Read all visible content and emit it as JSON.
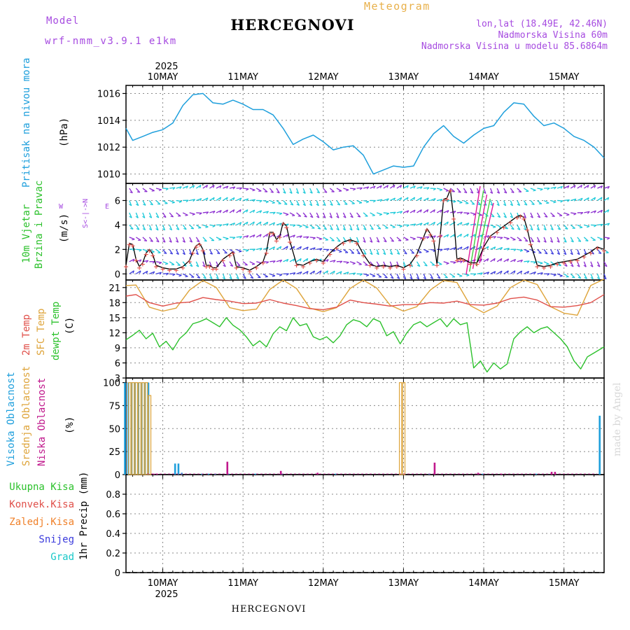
{
  "header": {
    "model_label": "Model",
    "model_name": "wrf-nmm_v3.9.1 e1km",
    "meteogram": "Meteogram",
    "location": "HERCEGNOVI",
    "lonlat": "lon,lat (18.49E, 42.46N)",
    "altitude": "Nadmorska Visina 60m",
    "model_altitude": "Nadmorska Visina u modelu 85.6864m",
    "footer_location": "HERCEGNOVI",
    "watermark": "made by Angel",
    "year": "2025"
  },
  "colors": {
    "pressure": "#1e9fdc",
    "temp2m": "#e0504a",
    "sfc": "#dea43a",
    "dewpt": "#2cc12c",
    "high_cloud": "#1e9fdc",
    "mid_cloud": "#dea43a",
    "low_cloud": "#c0188c",
    "wind_purple": "#8a2bd0",
    "wind_cyan": "#18c8d8",
    "wind_blue": "#3a3adc",
    "wind_green": "#40d040",
    "wind_pink": "#e0189a",
    "ukupna": "#2cc12c",
    "konvek": "#e0504a",
    "zaledj": "#f0812a",
    "snijeg": "#3a3adc",
    "grad": "#18c8c8",
    "purple_label": "#a64be0"
  },
  "panel_labels": {
    "pressure": {
      "name": "Pritisak na nivou mora",
      "unit": "(hPa)"
    },
    "wind": {
      "line1": "10m Vjetar",
      "line2": "Brzina i Pravac",
      "unit": "(m/s)",
      "compass_w": "W",
      "compass_e": "E",
      "compass_ns": "S<-|->N"
    },
    "temp": {
      "l1": "2m Temp",
      "l2": "SFC Temp",
      "l3": "dewpt Temp",
      "unit": "(C)"
    },
    "cloud": {
      "l1": "Visoka Oblacnost",
      "l2": "Srednja Oblacnost",
      "l3": "Niska Oblacnost",
      "unit": "(%)"
    },
    "precip": {
      "l1": "Ukupna Kisa",
      "l2": "Konvek.Kisa",
      "l3": "Zaledj.Kisa",
      "l4": "Snijeg",
      "l5": "Grad",
      "unit": "1hr Precip (mm)"
    }
  },
  "chart_data": [
    {
      "type": "line",
      "title": "HERCEGNOVI",
      "ylabel": "Pritisak na nivou mora (hPa)",
      "x_start_hour_of_may9": 13,
      "x_end_hour_of_may9": 156,
      "date_ticks": [
        "10MAY",
        "11MAY",
        "12MAY",
        "13MAY",
        "14MAY",
        "15MAY"
      ],
      "date_tick_hours": [
        24,
        48,
        72,
        96,
        120,
        144
      ],
      "ylim": [
        1009.3,
        1016.6
      ],
      "yticks": [
        1010,
        1012,
        1014,
        1016
      ],
      "series": [
        {
          "name": "Pritisak na nivou mora",
          "x": [
            13,
            15,
            18,
            21,
            24,
            27,
            30,
            33,
            36,
            39,
            42,
            45,
            48,
            51,
            54,
            57,
            60,
            63,
            66,
            69,
            72,
            75,
            78,
            81,
            84,
            87,
            90,
            93,
            96,
            99,
            102,
            105,
            108,
            111,
            114,
            117,
            120,
            123,
            126,
            129,
            132,
            135,
            138,
            141,
            144,
            147,
            150,
            153,
            156
          ],
          "y": [
            1013.4,
            1012.5,
            1012.8,
            1013.1,
            1013.3,
            1013.8,
            1015.1,
            1015.9,
            1016.0,
            1015.3,
            1015.2,
            1015.5,
            1015.2,
            1014.8,
            1014.8,
            1014.4,
            1013.4,
            1012.2,
            1012.6,
            1012.9,
            1012.4,
            1011.8,
            1012.0,
            1012.1,
            1011.4,
            1010.0,
            1010.3,
            1010.6,
            1010.5,
            1010.6,
            1012.0,
            1013.0,
            1013.6,
            1012.8,
            1012.3,
            1012.9,
            1013.4,
            1013.6,
            1014.6,
            1015.3,
            1015.2,
            1014.3,
            1013.6,
            1013.8,
            1013.4,
            1012.8,
            1012.5,
            1012.0,
            1011.2
          ]
        }
      ]
    },
    {
      "type": "line",
      "ylabel": "10m Vjetar Brzina i Pravac (m/s)",
      "ylim": [
        -0.5,
        7.4
      ],
      "yticks": [
        0,
        2,
        4,
        6
      ],
      "series": [
        {
          "name": "10m Vjetar",
          "x": [
            13,
            14,
            15,
            16,
            17,
            18,
            19,
            20,
            21,
            22,
            24,
            26,
            28,
            30,
            32,
            33,
            34,
            35,
            36,
            37,
            38,
            39,
            40,
            42,
            44,
            45,
            46,
            48,
            50,
            52,
            54,
            55,
            56,
            57,
            58,
            59,
            60,
            61,
            62,
            64,
            66,
            68,
            70,
            72,
            74,
            76,
            78,
            80,
            82,
            84,
            86,
            88,
            90,
            92,
            94,
            96,
            98,
            100,
            102,
            103,
            104,
            105,
            106,
            107,
            108,
            109,
            110,
            111,
            112,
            113,
            114,
            116,
            118,
            120,
            122,
            124,
            126,
            128,
            130,
            131,
            132,
            133,
            134,
            136,
            138,
            140,
            142,
            144,
            146,
            148,
            150,
            152,
            154,
            156
          ],
          "y": [
            0.7,
            2.5,
            2.4,
            1.2,
            0.6,
            0.9,
            1.7,
            2.0,
            1.6,
            0.7,
            0.5,
            0.4,
            0.4,
            0.6,
            1.1,
            1.8,
            2.3,
            2.5,
            2.0,
            0.7,
            0.7,
            0.5,
            0.5,
            1.2,
            1.6,
            1.8,
            0.6,
            0.5,
            0.3,
            0.6,
            1.0,
            1.8,
            3.4,
            3.4,
            2.8,
            3.1,
            4.2,
            3.9,
            2.7,
            0.8,
            0.7,
            1.0,
            1.2,
            1.0,
            1.7,
            2.2,
            2.6,
            2.8,
            2.6,
            1.6,
            0.8,
            0.6,
            0.7,
            0.6,
            0.7,
            0.5,
            0.8,
            1.6,
            3.0,
            3.7,
            3.3,
            2.8,
            0.8,
            3.2,
            6.1,
            6.2,
            6.9,
            4.6,
            1.2,
            1.3,
            1.2,
            0.9,
            0.9,
            2.2,
            3.1,
            3.5,
            3.9,
            4.3,
            4.7,
            4.8,
            4.6,
            3.7,
            2.5,
            0.7,
            0.6,
            0.7,
            0.9,
            1.0,
            1.1,
            1.2,
            1.5,
            1.8,
            2.2,
            2.0
          ]
        }
      ]
    },
    {
      "type": "line",
      "ylabel": "2m Temp / SFC Temp / dewpt Temp (C)",
      "ylim": [
        3,
        22.5
      ],
      "yticks": [
        3,
        6,
        9,
        12,
        15,
        18,
        21
      ],
      "series": [
        {
          "name": "2m Temp",
          "x": [
            13,
            16,
            20,
            24,
            28,
            32,
            36,
            40,
            44,
            48,
            52,
            56,
            60,
            64,
            68,
            72,
            76,
            80,
            84,
            88,
            92,
            96,
            100,
            104,
            108,
            112,
            116,
            120,
            124,
            128,
            132,
            136,
            140,
            144,
            148,
            152,
            156
          ],
          "y": [
            19.3,
            19.6,
            18.0,
            17.3,
            17.9,
            18.1,
            19.0,
            18.6,
            18.3,
            17.8,
            17.9,
            18.6,
            17.9,
            17.4,
            16.8,
            16.6,
            17.1,
            18.5,
            18.0,
            17.7,
            17.3,
            17.6,
            17.6,
            18.0,
            17.9,
            18.3,
            17.6,
            17.5,
            17.9,
            18.8,
            19.1,
            18.5,
            17.2,
            17.1,
            17.4,
            18.0,
            19.6
          ]
        },
        {
          "name": "SFC Temp",
          "x": [
            13,
            16,
            20,
            24,
            28,
            32,
            36,
            40,
            44,
            48,
            52,
            56,
            60,
            64,
            68,
            72,
            76,
            80,
            84,
            88,
            92,
            96,
            100,
            104,
            108,
            112,
            116,
            120,
            124,
            128,
            132,
            136,
            140,
            144,
            148,
            152,
            156
          ],
          "y": [
            21.4,
            21.5,
            17.1,
            16.3,
            16.9,
            20.5,
            22.4,
            21.0,
            17.0,
            16.4,
            16.7,
            20.6,
            22.5,
            20.8,
            16.9,
            16.2,
            17.0,
            20.8,
            22.5,
            20.9,
            17.5,
            16.3,
            17.2,
            20.5,
            22.4,
            22.0,
            17.4,
            16.0,
            17.3,
            21.0,
            22.5,
            21.6,
            17.2,
            15.9,
            15.5,
            21.4,
            22.7
          ]
        },
        {
          "name": "dewpt Temp",
          "x": [
            13,
            15,
            17,
            19,
            21,
            23,
            25,
            27,
            29,
            31,
            33,
            35,
            37,
            39,
            41,
            43,
            45,
            47,
            49,
            51,
            53,
            55,
            57,
            59,
            61,
            63,
            65,
            67,
            69,
            71,
            73,
            75,
            77,
            79,
            81,
            83,
            85,
            87,
            89,
            91,
            93,
            95,
            97,
            99,
            101,
            103,
            105,
            107,
            109,
            111,
            113,
            115,
            117,
            119,
            121,
            123,
            125,
            127,
            129,
            131,
            133,
            135,
            137,
            139,
            141,
            143,
            145,
            147,
            149,
            151,
            153,
            156
          ],
          "y": [
            10.6,
            11.5,
            12.5,
            10.8,
            11.9,
            9.2,
            10.3,
            8.6,
            10.8,
            12.0,
            13.8,
            14.2,
            14.8,
            14.0,
            13.2,
            15.0,
            13.5,
            12.6,
            11.2,
            9.4,
            10.4,
            9.2,
            11.8,
            13.2,
            12.4,
            15.0,
            13.4,
            13.8,
            11.2,
            10.6,
            11.2,
            10.0,
            11.4,
            13.6,
            14.6,
            14.2,
            13.2,
            14.8,
            14.2,
            11.4,
            12.2,
            9.8,
            12.0,
            13.6,
            14.2,
            13.2,
            14.0,
            14.8,
            13.2,
            14.8,
            13.6,
            14.0,
            5.0,
            6.4,
            4.2,
            6.0,
            4.8,
            5.8,
            10.8,
            12.2,
            13.2,
            12.0,
            12.8,
            13.2,
            12.0,
            10.8,
            9.2,
            6.4,
            4.8,
            7.2,
            8.0,
            9.2
          ]
        }
      ]
    },
    {
      "type": "bar",
      "ylabel": "Visoka / Srednja / Niska Oblacnost (%)",
      "ylim": [
        0,
        105
      ],
      "yticks": [
        0,
        25,
        50,
        75,
        100
      ],
      "series": [
        {
          "name": "Visoka Oblacnost",
          "x": [
            13,
            14,
            15,
            16,
            17,
            18,
            19,
            20,
            28,
            29,
            30,
            36,
            38,
            40,
            44,
            52,
            60,
            76,
            96,
            104,
            120,
            136,
            155
          ],
          "y": [
            100,
            100,
            100,
            100,
            100,
            100,
            100,
            100,
            12,
            12,
            2,
            1,
            1,
            1,
            1,
            1,
            1,
            1,
            1,
            1,
            1,
            1,
            64
          ]
        },
        {
          "name": "Srednja Oblacnost",
          "x": [
            14,
            15,
            16,
            17,
            18,
            19,
            20,
            95,
            96
          ],
          "y": [
            100,
            100,
            100,
            100,
            100,
            100,
            86,
            100,
            100
          ]
        },
        {
          "name": "Niska Oblacnost",
          "x": [
            21,
            22,
            43,
            59,
            70,
            105,
            118,
            125,
            140,
            141
          ],
          "y": [
            1,
            1,
            14,
            4,
            2,
            13,
            2,
            1,
            3,
            3
          ]
        }
      ]
    },
    {
      "type": "bar",
      "ylabel": "1hr Precip (mm)",
      "ylim": [
        0,
        1.0
      ],
      "yticks": [
        0,
        0.2,
        0.4,
        0.6,
        0.8
      ],
      "series": [
        {
          "name": "Ukupna Kisa",
          "x": [],
          "y": []
        },
        {
          "name": "Konvek.Kisa",
          "x": [],
          "y": []
        },
        {
          "name": "Zaledj.Kisa",
          "x": [],
          "y": []
        },
        {
          "name": "Snijeg",
          "x": [],
          "y": []
        },
        {
          "name": "Grad",
          "x": [],
          "y": []
        }
      ]
    }
  ]
}
